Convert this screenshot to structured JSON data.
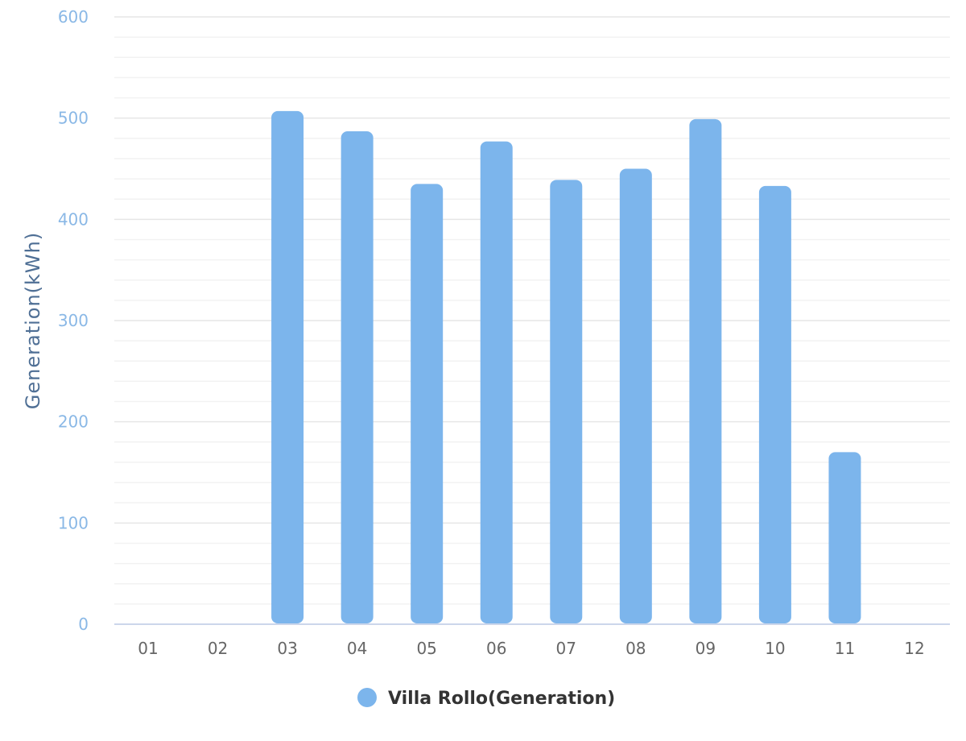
{
  "chart_data": {
    "type": "bar",
    "categories": [
      "01",
      "02",
      "03",
      "04",
      "05",
      "06",
      "07",
      "08",
      "09",
      "10",
      "11",
      "12"
    ],
    "series": [
      {
        "name": "Villa Rollo(Generation)",
        "values": [
          0,
          0,
          507,
          487,
          435,
          477,
          439,
          450,
          499,
          433,
          170,
          0
        ],
        "color": "#7cb5ec"
      }
    ],
    "ylabel": "Generation(kWh)",
    "xlabel": "",
    "ylim": [
      0,
      600
    ],
    "yticks": [
      0,
      100,
      200,
      300,
      400,
      500,
      600
    ],
    "grid": true,
    "minor_grid": true,
    "legend": "bottom-center",
    "colors": {
      "bar": "#7cb5ec",
      "grid": "#e6e6e6",
      "axis": "#ccd6eb",
      "ytick": "#8ab8e6",
      "xtick": "#666666",
      "ytitle": "#4f6f95",
      "legend_text": "#333333"
    }
  }
}
